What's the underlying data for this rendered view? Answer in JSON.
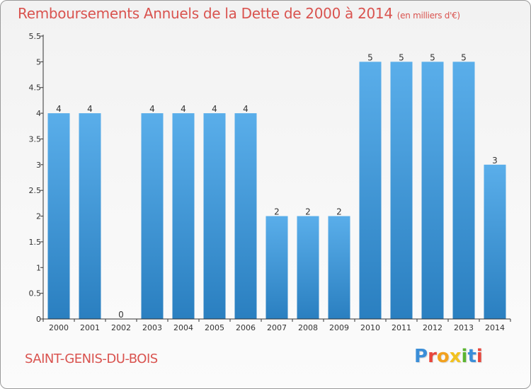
{
  "header": {
    "title": "Remboursements Annuels de la Dette de 2000 à 2014",
    "unit": "(en milliers d'€)"
  },
  "footer": {
    "commune": "SAINT-GENIS-DU-BOIS",
    "logo_text": "Proxiti",
    "logo_colors": [
      "#3b8ed8",
      "#e8463c",
      "#f2a11f",
      "#f2c21f",
      "#5cb531",
      "#3b8ed8",
      "#e8463c"
    ]
  },
  "colors": {
    "bar_dark": "#2a7fc0",
    "bar_light": "#5aaeea",
    "accent": "#d9534f",
    "axis": "#333333"
  },
  "chart_data": {
    "type": "bar",
    "categories": [
      "2000",
      "2001",
      "2002",
      "2003",
      "2004",
      "2005",
      "2006",
      "2007",
      "2008",
      "2009",
      "2010",
      "2011",
      "2012",
      "2013",
      "2014"
    ],
    "values": [
      4,
      4,
      0,
      4,
      4,
      4,
      4,
      2,
      2,
      2,
      5,
      5,
      5,
      5,
      3
    ],
    "data_labels": [
      "4",
      "4",
      "0",
      "4",
      "4",
      "4",
      "4",
      "2",
      "2",
      "2",
      "5",
      "5",
      "5",
      "5",
      "3"
    ],
    "yticks": [
      "0",
      "0.5",
      "1",
      "1.5",
      "2",
      "2.5",
      "3",
      "3.5",
      "4",
      "4.5",
      "5",
      "5.5"
    ],
    "ylim": [
      0,
      5.5
    ],
    "grid": false,
    "legend": "none"
  }
}
